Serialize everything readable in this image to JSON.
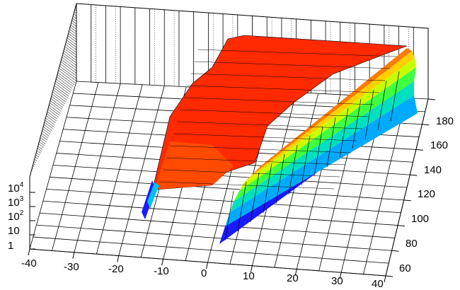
{
  "chart_data": {
    "type": "surface-3d",
    "colormap": "rainbow",
    "z_scale": "log",
    "x_ticks": [
      "-40",
      "-30",
      "-20",
      "-10",
      "0",
      "10",
      "20",
      "30",
      "40"
    ],
    "y_ticks": [
      "60",
      "80",
      "100",
      "120",
      "140",
      "160",
      "180"
    ],
    "z_ticks": [
      {
        "base": "1",
        "exp": ""
      },
      {
        "base": "10",
        "exp": ""
      },
      {
        "base": "10",
        "exp": "2"
      },
      {
        "base": "10",
        "exp": "3"
      },
      {
        "base": "10",
        "exp": "4"
      }
    ],
    "xlim": [
      -40,
      40
    ],
    "ylim": [
      55,
      190
    ],
    "grid": true
  }
}
